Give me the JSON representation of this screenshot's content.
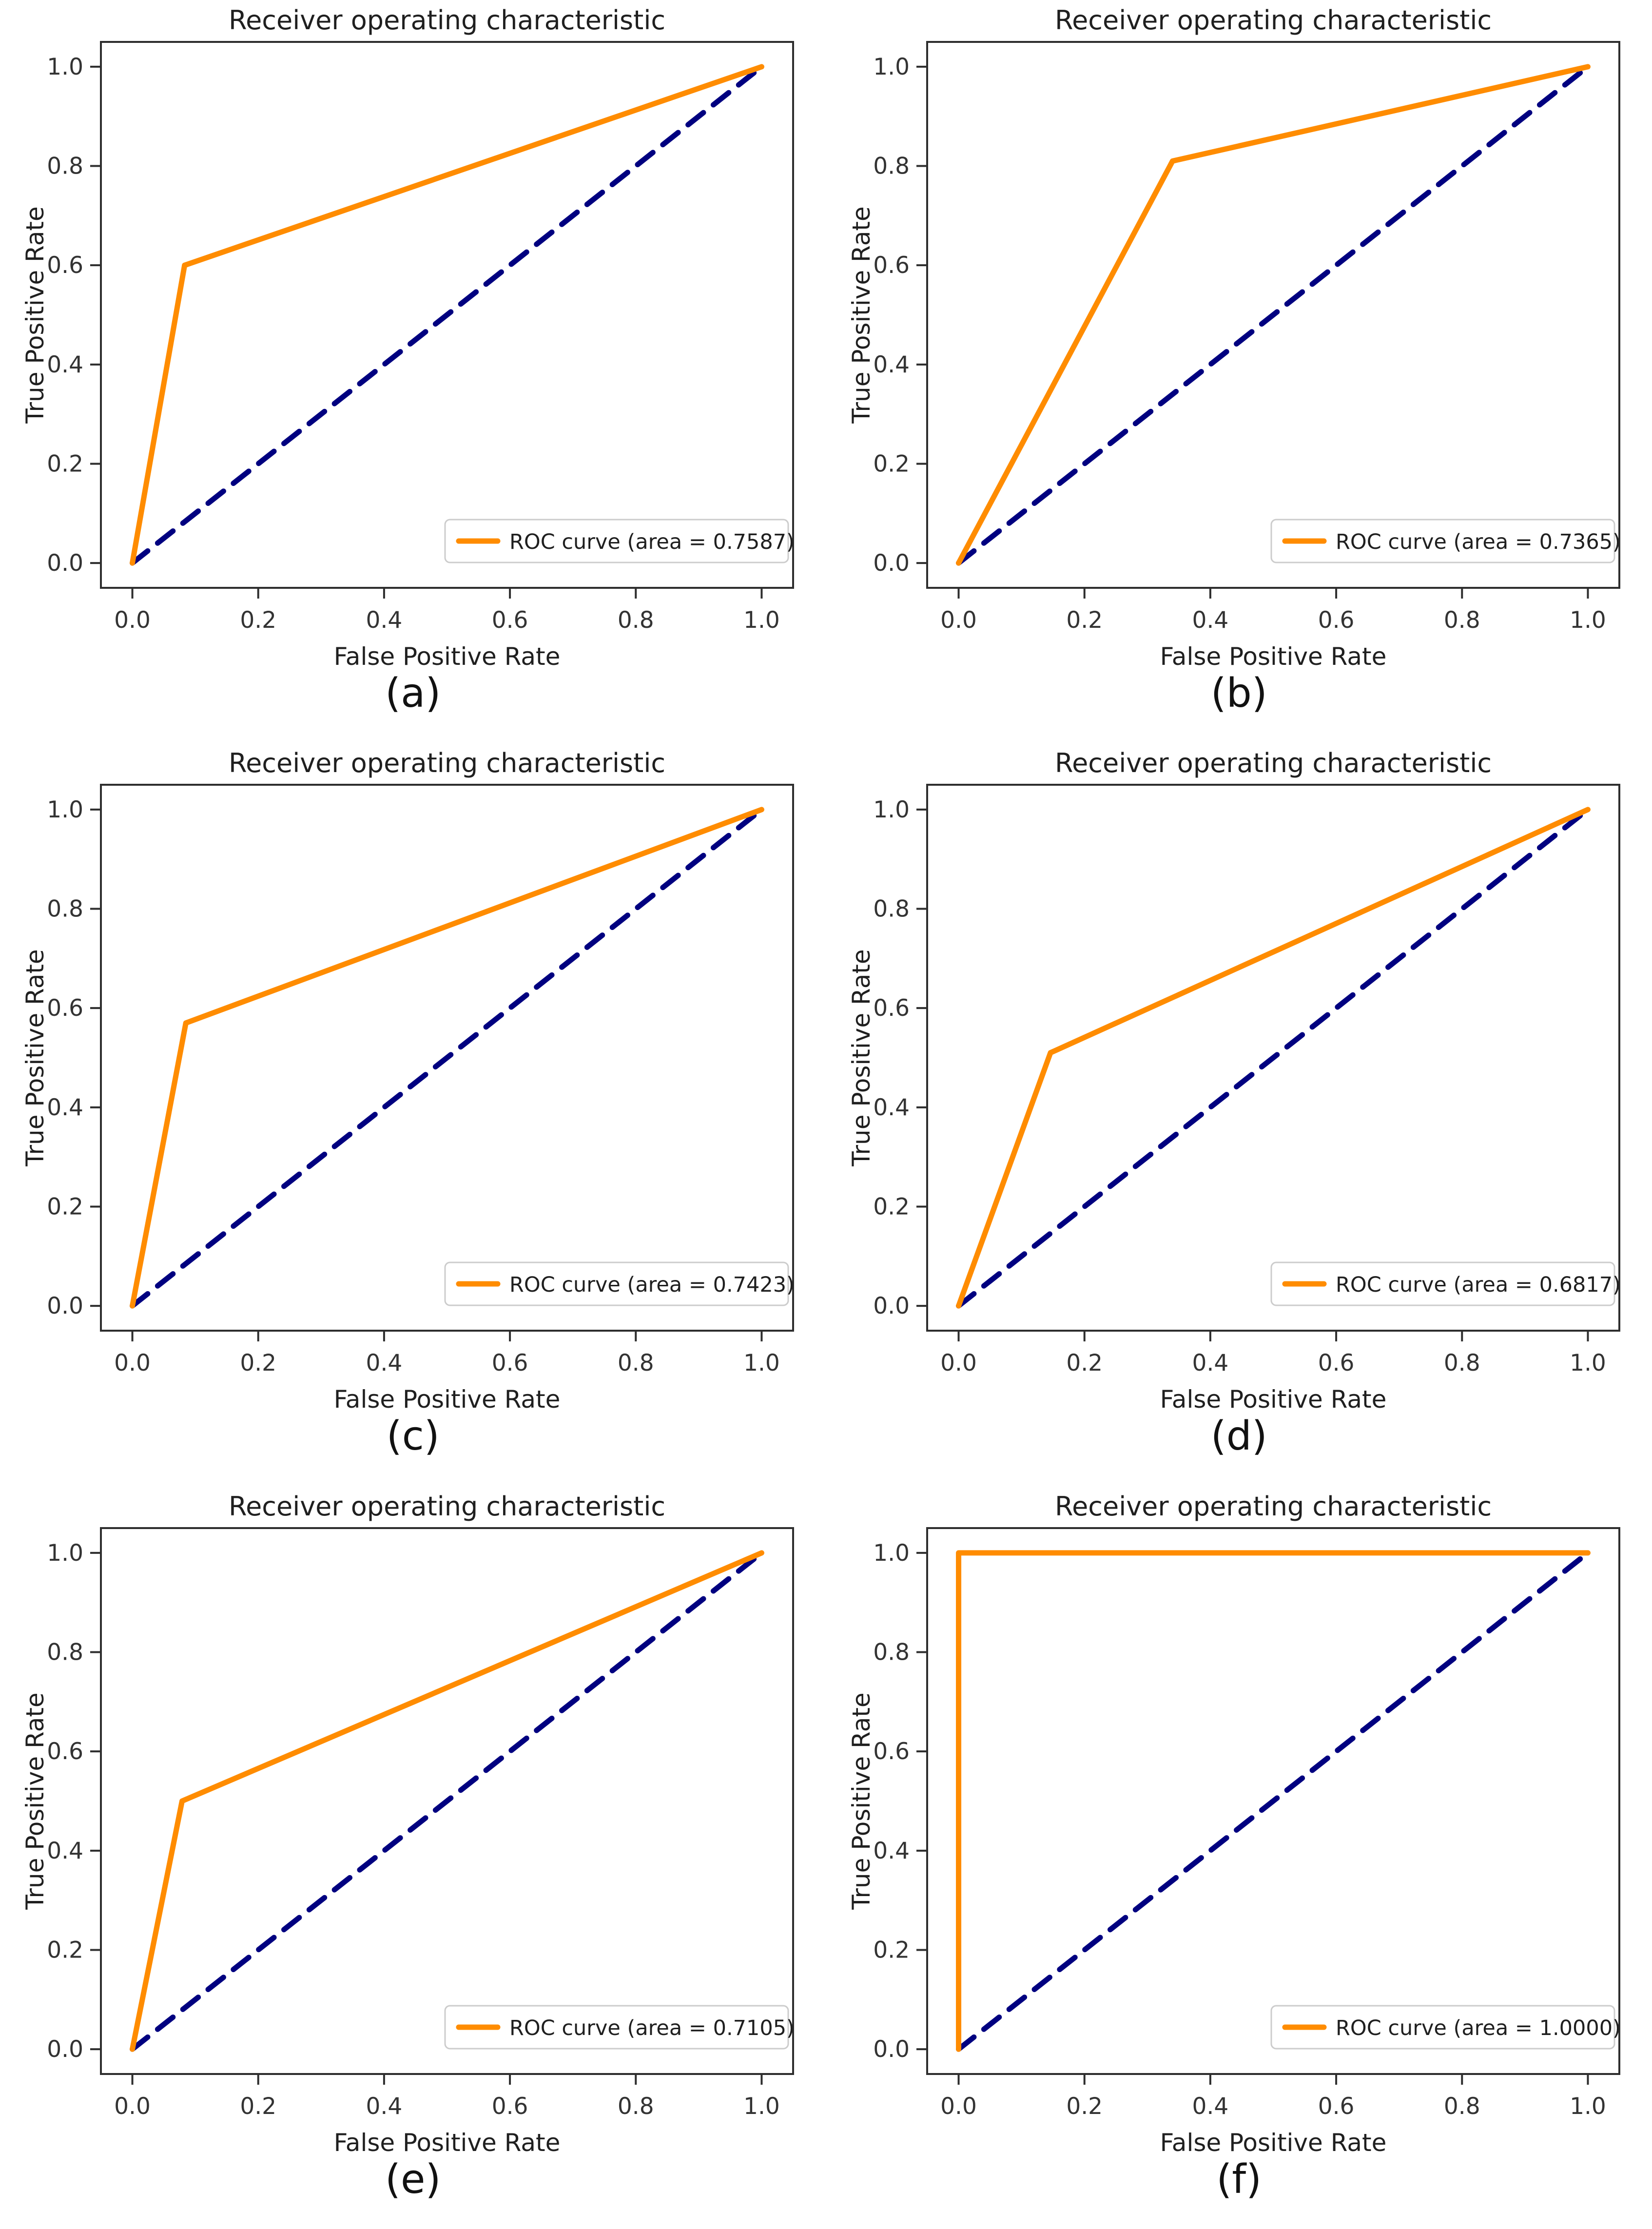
{
  "figure": {
    "background": "#ffffff",
    "colors": {
      "roc_curve": "#ff8c00",
      "chance_line": "#000080",
      "spine": "#2e2e2e",
      "text": "#1f1f1f",
      "tick_text": "#333333",
      "legend_border": "#cccccc",
      "legend_background": "#ffffff"
    }
  },
  "chart_data": [
    {
      "id": "a",
      "type": "line",
      "caption": "(a)",
      "title": "Receiver operating characteristic",
      "xlabel": "False Positive Rate",
      "ylabel": "True Positive Rate",
      "xlim": [
        0.0,
        1.0
      ],
      "ylim": [
        0.0,
        1.0
      ],
      "x_ticks": [
        "0.0",
        "0.2",
        "0.4",
        "0.6",
        "0.8",
        "1.0"
      ],
      "y_ticks": [
        "0.0",
        "0.2",
        "0.4",
        "0.6",
        "0.8",
        "1.0"
      ],
      "grid": false,
      "legend_position": "lower right",
      "auc": 0.7587,
      "series": [
        {
          "name": "ROC curve (area = 0.7587)",
          "style": "solid",
          "color_key": "roc_curve",
          "in_legend": true,
          "x": [
            0.0,
            0.083,
            1.0
          ],
          "y": [
            0.0,
            0.6,
            1.0
          ]
        },
        {
          "name": "chance diagonal",
          "style": "dashed",
          "color_key": "chance_line",
          "in_legend": false,
          "x": [
            0.0,
            1.0
          ],
          "y": [
            0.0,
            1.0
          ]
        }
      ]
    },
    {
      "id": "b",
      "type": "line",
      "caption": "(b)",
      "title": "Receiver operating characteristic",
      "xlabel": "False Positive Rate",
      "ylabel": "True Positive Rate",
      "xlim": [
        0.0,
        1.0
      ],
      "ylim": [
        0.0,
        1.0
      ],
      "x_ticks": [
        "0.0",
        "0.2",
        "0.4",
        "0.6",
        "0.8",
        "1.0"
      ],
      "y_ticks": [
        "0.0",
        "0.2",
        "0.4",
        "0.6",
        "0.8",
        "1.0"
      ],
      "grid": false,
      "legend_position": "lower right",
      "auc": 0.7365,
      "series": [
        {
          "name": "ROC curve (area = 0.7365)",
          "style": "solid",
          "color_key": "roc_curve",
          "in_legend": true,
          "x": [
            0.0,
            0.34,
            1.0
          ],
          "y": [
            0.0,
            0.81,
            1.0
          ]
        },
        {
          "name": "chance diagonal",
          "style": "dashed",
          "color_key": "chance_line",
          "in_legend": false,
          "x": [
            0.0,
            1.0
          ],
          "y": [
            0.0,
            1.0
          ]
        }
      ]
    },
    {
      "id": "c",
      "type": "line",
      "caption": "(c)",
      "title": "Receiver operating characteristic",
      "xlabel": "False Positive Rate",
      "ylabel": "True Positive Rate",
      "xlim": [
        0.0,
        1.0
      ],
      "ylim": [
        0.0,
        1.0
      ],
      "x_ticks": [
        "0.0",
        "0.2",
        "0.4",
        "0.6",
        "0.8",
        "1.0"
      ],
      "y_ticks": [
        "0.0",
        "0.2",
        "0.4",
        "0.6",
        "0.8",
        "1.0"
      ],
      "grid": false,
      "legend_position": "lower right",
      "auc": 0.7423,
      "series": [
        {
          "name": "ROC curve (area = 0.7423)",
          "style": "solid",
          "color_key": "roc_curve",
          "in_legend": true,
          "x": [
            0.0,
            0.085,
            1.0
          ],
          "y": [
            0.0,
            0.57,
            1.0
          ]
        },
        {
          "name": "chance diagonal",
          "style": "dashed",
          "color_key": "chance_line",
          "in_legend": false,
          "x": [
            0.0,
            1.0
          ],
          "y": [
            0.0,
            1.0
          ]
        }
      ]
    },
    {
      "id": "d",
      "type": "line",
      "caption": "(d)",
      "title": "Receiver operating characteristic",
      "xlabel": "False Positive Rate",
      "ylabel": "True Positive Rate",
      "xlim": [
        0.0,
        1.0
      ],
      "ylim": [
        0.0,
        1.0
      ],
      "x_ticks": [
        "0.0",
        "0.2",
        "0.4",
        "0.6",
        "0.8",
        "1.0"
      ],
      "y_ticks": [
        "0.0",
        "0.2",
        "0.4",
        "0.6",
        "0.8",
        "1.0"
      ],
      "grid": false,
      "legend_position": "lower right",
      "auc": 0.6817,
      "series": [
        {
          "name": "ROC curve (area = 0.6817)",
          "style": "solid",
          "color_key": "roc_curve",
          "in_legend": true,
          "x": [
            0.0,
            0.146,
            1.0
          ],
          "y": [
            0.0,
            0.51,
            1.0
          ]
        },
        {
          "name": "chance diagonal",
          "style": "dashed",
          "color_key": "chance_line",
          "in_legend": false,
          "x": [
            0.0,
            1.0
          ],
          "y": [
            0.0,
            1.0
          ]
        }
      ]
    },
    {
      "id": "e",
      "type": "line",
      "caption": "(e)",
      "title": "Receiver operating characteristic",
      "xlabel": "False Positive Rate",
      "ylabel": "True Positive Rate",
      "xlim": [
        0.0,
        1.0
      ],
      "ylim": [
        0.0,
        1.0
      ],
      "x_ticks": [
        "0.0",
        "0.2",
        "0.4",
        "0.6",
        "0.8",
        "1.0"
      ],
      "y_ticks": [
        "0.0",
        "0.2",
        "0.4",
        "0.6",
        "0.8",
        "1.0"
      ],
      "grid": false,
      "legend_position": "lower right",
      "auc": 0.7105,
      "series": [
        {
          "name": "ROC curve (area = 0.7105)",
          "style": "solid",
          "color_key": "roc_curve",
          "in_legend": true,
          "x": [
            0.0,
            0.079,
            1.0
          ],
          "y": [
            0.0,
            0.5,
            1.0
          ]
        },
        {
          "name": "chance diagonal",
          "style": "dashed",
          "color_key": "chance_line",
          "in_legend": false,
          "x": [
            0.0,
            1.0
          ],
          "y": [
            0.0,
            1.0
          ]
        }
      ]
    },
    {
      "id": "f",
      "type": "line",
      "caption": "(f)",
      "title": "Receiver operating characteristic",
      "xlabel": "False Positive Rate",
      "ylabel": "True Positive Rate",
      "xlim": [
        0.0,
        1.0
      ],
      "ylim": [
        0.0,
        1.0
      ],
      "x_ticks": [
        "0.0",
        "0.2",
        "0.4",
        "0.6",
        "0.8",
        "1.0"
      ],
      "y_ticks": [
        "0.0",
        "0.2",
        "0.4",
        "0.6",
        "0.8",
        "1.0"
      ],
      "grid": false,
      "legend_position": "lower right",
      "auc": 1.0,
      "series": [
        {
          "name": "ROC curve (area = 1.0000)",
          "style": "solid",
          "color_key": "roc_curve",
          "in_legend": true,
          "x": [
            0.0,
            0.0,
            1.0
          ],
          "y": [
            0.0,
            1.0,
            1.0
          ]
        },
        {
          "name": "chance diagonal",
          "style": "dashed",
          "color_key": "chance_line",
          "in_legend": false,
          "x": [
            0.0,
            1.0
          ],
          "y": [
            0.0,
            1.0
          ]
        }
      ]
    }
  ]
}
